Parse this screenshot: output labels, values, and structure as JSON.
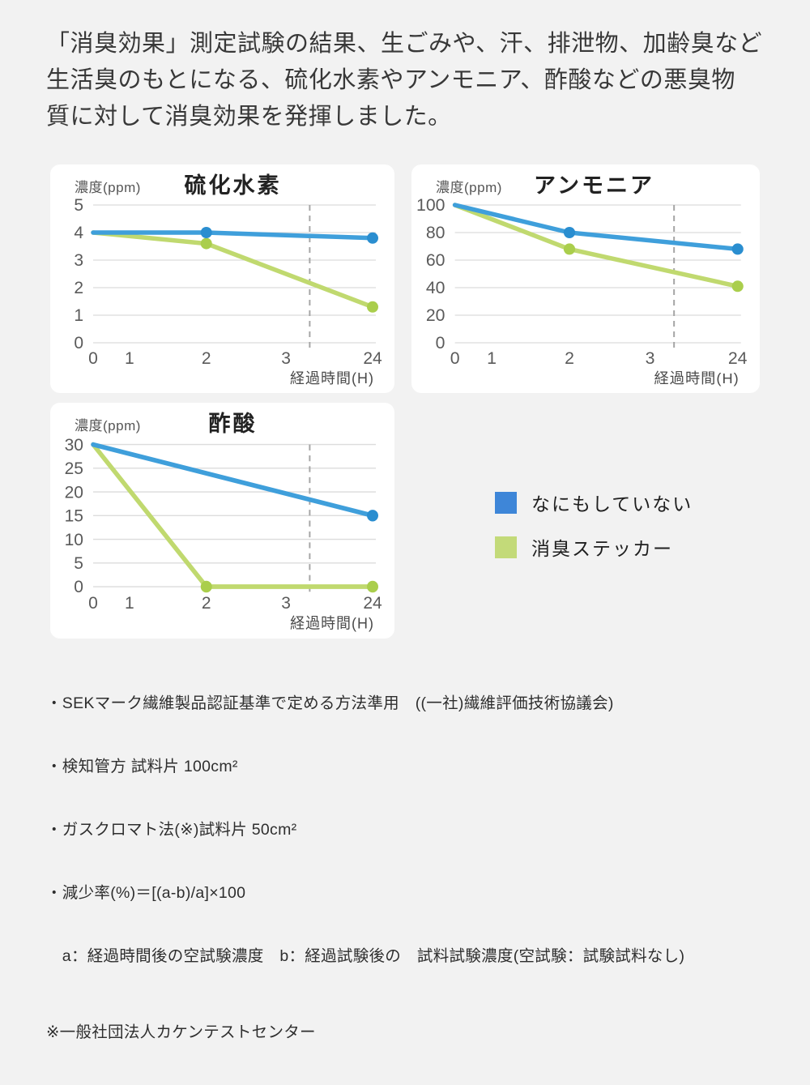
{
  "header": {
    "lines": [
      "「消臭効果」測定試験の結果、生ごみや、汗、排泄物、加齢臭など",
      "生活臭のもとになる、硫化水素やアンモニア、酢酸などの悪臭物",
      "質に対して消臭効果を発揮しました。"
    ]
  },
  "chart_data": [
    {
      "type": "line",
      "title": "硫化水素",
      "ylabel": "濃度(ppm)",
      "xlabel": "経過時間(H)",
      "x_ticks": [
        "0",
        "1",
        "2",
        "3",
        "24"
      ],
      "y_ticks": [
        0,
        1,
        2,
        3,
        4,
        5
      ],
      "ylim": [
        0,
        5
      ],
      "grid": true,
      "series": [
        {
          "name": "なにもしていない",
          "color": "#3f9fdb",
          "dot_color": "#2a8ed0",
          "x": [
            0,
            2,
            24
          ],
          "values": [
            4,
            4,
            3.8
          ],
          "dots": [
            false,
            true,
            true
          ]
        },
        {
          "name": "消臭ステッカー",
          "color": "#c0d96f",
          "dot_color": "#aace4c",
          "x": [
            0,
            2,
            24
          ],
          "values": [
            4,
            3.6,
            1.3
          ],
          "dots": [
            false,
            true,
            true
          ]
        }
      ]
    },
    {
      "type": "line",
      "title": "アンモニア",
      "ylabel": "濃度(ppm)",
      "xlabel": "経過時間(H)",
      "x_ticks": [
        "0",
        "1",
        "2",
        "3",
        "24"
      ],
      "y_ticks": [
        0,
        20,
        40,
        60,
        80,
        100
      ],
      "ylim": [
        0,
        100
      ],
      "grid": true,
      "series": [
        {
          "name": "なにもしていない",
          "color": "#3f9fdb",
          "dot_color": "#2a8ed0",
          "x": [
            0,
            2,
            24
          ],
          "values": [
            100,
            80,
            68
          ],
          "dots": [
            false,
            true,
            true
          ]
        },
        {
          "name": "消臭ステッカー",
          "color": "#c0d96f",
          "dot_color": "#aace4c",
          "x": [
            0,
            2,
            24
          ],
          "values": [
            100,
            68,
            41
          ],
          "dots": [
            false,
            true,
            true
          ]
        }
      ]
    },
    {
      "type": "line",
      "title": "酢酸",
      "ylabel": "濃度(ppm)",
      "xlabel": "経過時間(H)",
      "x_ticks": [
        "0",
        "1",
        "2",
        "3",
        "24"
      ],
      "y_ticks": [
        0,
        5,
        10,
        15,
        20,
        25,
        30
      ],
      "ylim": [
        0,
        30
      ],
      "grid": true,
      "series": [
        {
          "name": "なにもしていない",
          "color": "#3f9fdb",
          "dot_color": "#2a8ed0",
          "x": [
            0,
            24
          ],
          "values": [
            30,
            15
          ],
          "dots": [
            false,
            true
          ]
        },
        {
          "name": "消臭ステッカー",
          "color": "#c0d96f",
          "dot_color": "#aace4c",
          "x": [
            0,
            2,
            24
          ],
          "values": [
            30,
            0,
            0
          ],
          "dots": [
            false,
            true,
            true
          ]
        }
      ]
    }
  ],
  "legend": {
    "items": [
      {
        "label": "なにもしていない",
        "color": "#3e86d8"
      },
      {
        "label": "消臭ステッカー",
        "color": "#c3da79"
      }
    ]
  },
  "footnotes": {
    "lines": [
      "・SEKマーク繊維製品認証基準で定める方法準用　((一社)繊維評価技術協議会)",
      "・検知管方 試料片 100cm²",
      "・ガスクロマト法(※)試料片 50cm²",
      "・減少率(%)＝[(a-b)/a]×100",
      "　a：経過時間後の空試験濃度　b：経過試験後の　試料試験濃度(空試験：試験試料なし)"
    ],
    "source": "※一般社団法人カケンテストセンター"
  }
}
